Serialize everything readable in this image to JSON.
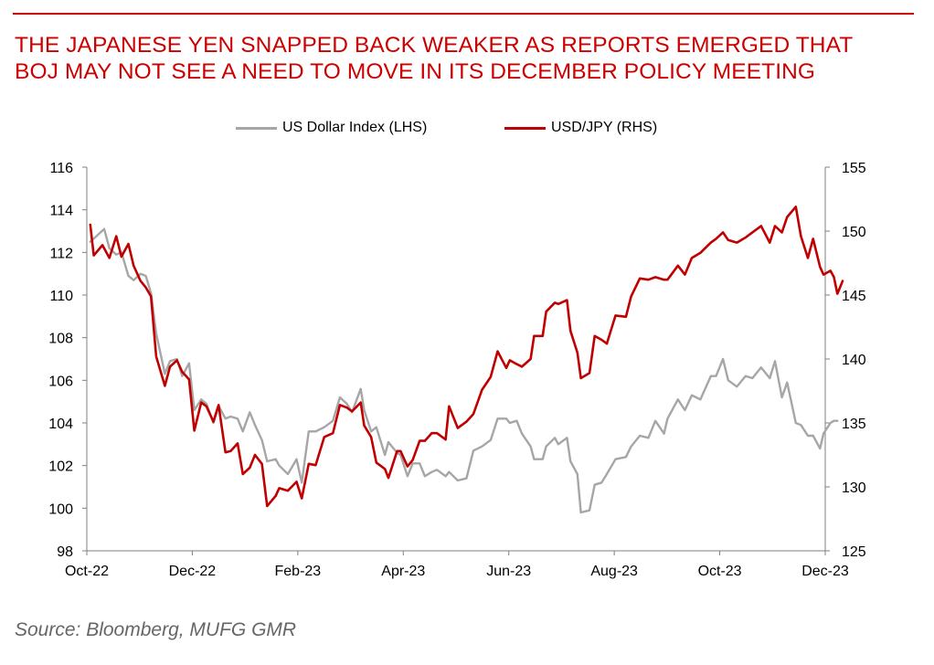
{
  "title_lines": [
    "THE JAPANESE YEN SNAPPED BACK WEAKER AS REPORTS EMERGED THAT",
    "BOJ MAY NOT SEE A NEED TO MOVE IN ITS DECEMBER POLICY MEETING"
  ],
  "source": "Source: Bloomberg, MUFG GMR",
  "colors": {
    "accent": "#cc0000",
    "dxy": "#a6a6a6",
    "usdjpy": "#c00000",
    "axis": "#808080"
  },
  "chart_data": {
    "type": "line",
    "title": "THE JAPANESE YEN SNAPPED BACK WEAKER AS REPORTS EMERGED THAT BOJ MAY NOT SEE A NEED TO MOVE IN ITS DECEMBER POLICY MEETING",
    "x_tick_labels": [
      "Oct-22",
      "Dec-22",
      "Feb-23",
      "Apr-23",
      "Jun-23",
      "Aug-23",
      "Oct-23",
      "Dec-23"
    ],
    "x_range": [
      "2022-10-01",
      "2023-12-01"
    ],
    "y_left_range": [
      98,
      116
    ],
    "y_left_ticks": [
      98,
      100,
      102,
      104,
      106,
      108,
      110,
      112,
      114,
      116
    ],
    "y_right_range": [
      125,
      155
    ],
    "y_right_ticks": [
      125,
      130,
      135,
      140,
      145,
      150,
      155
    ],
    "grid": false,
    "legend_position": "top-center",
    "series": [
      {
        "name": "US Dollar Index (LHS)",
        "axis": "left",
        "color": "#a6a6a6",
        "points": [
          [
            "2022-10-03",
            112.5
          ],
          [
            "2022-10-07",
            112.8
          ],
          [
            "2022-10-11",
            113.1
          ],
          [
            "2022-10-14",
            112.2
          ],
          [
            "2022-10-18",
            111.9
          ],
          [
            "2022-10-21",
            112.0
          ],
          [
            "2022-10-25",
            110.9
          ],
          [
            "2022-10-28",
            110.7
          ],
          [
            "2022-11-01",
            111.0
          ],
          [
            "2022-11-04",
            110.9
          ],
          [
            "2022-11-07",
            110.1
          ],
          [
            "2022-11-10",
            108.2
          ],
          [
            "2022-11-15",
            106.3
          ],
          [
            "2022-11-18",
            106.9
          ],
          [
            "2022-11-22",
            107.0
          ],
          [
            "2022-11-25",
            106.2
          ],
          [
            "2022-11-29",
            106.8
          ],
          [
            "2022-12-02",
            104.6
          ],
          [
            "2022-12-06",
            105.1
          ],
          [
            "2022-12-09",
            104.9
          ],
          [
            "2022-12-13",
            104.0
          ],
          [
            "2022-12-16",
            104.8
          ],
          [
            "2022-12-20",
            104.2
          ],
          [
            "2022-12-23",
            104.3
          ],
          [
            "2022-12-27",
            104.2
          ],
          [
            "2022-12-30",
            103.6
          ],
          [
            "2023-01-03",
            104.5
          ],
          [
            "2023-01-06",
            103.9
          ],
          [
            "2023-01-10",
            103.2
          ],
          [
            "2023-01-13",
            102.2
          ],
          [
            "2023-01-18",
            102.3
          ],
          [
            "2023-01-20",
            102.0
          ],
          [
            "2023-01-25",
            101.6
          ],
          [
            "2023-01-30",
            102.3
          ],
          [
            "2023-02-02",
            101.2
          ],
          [
            "2023-02-06",
            103.6
          ],
          [
            "2023-02-10",
            103.6
          ],
          [
            "2023-02-15",
            103.8
          ],
          [
            "2023-02-20",
            104.1
          ],
          [
            "2023-02-24",
            105.2
          ],
          [
            "2023-02-28",
            104.9
          ],
          [
            "2023-03-03",
            104.5
          ],
          [
            "2023-03-08",
            105.6
          ],
          [
            "2023-03-10",
            104.6
          ],
          [
            "2023-03-14",
            103.6
          ],
          [
            "2023-03-17",
            103.8
          ],
          [
            "2023-03-22",
            102.5
          ],
          [
            "2023-03-24",
            103.1
          ],
          [
            "2023-03-29",
            102.6
          ],
          [
            "2023-03-31",
            102.5
          ],
          [
            "2023-04-04",
            101.5
          ],
          [
            "2023-04-07",
            102.1
          ],
          [
            "2023-04-11",
            102.1
          ],
          [
            "2023-04-14",
            101.5
          ],
          [
            "2023-04-18",
            101.7
          ],
          [
            "2023-04-21",
            101.8
          ],
          [
            "2023-04-26",
            101.5
          ],
          [
            "2023-04-28",
            101.7
          ],
          [
            "2023-05-03",
            101.3
          ],
          [
            "2023-05-08",
            101.4
          ],
          [
            "2023-05-12",
            102.7
          ],
          [
            "2023-05-17",
            102.9
          ],
          [
            "2023-05-22",
            103.2
          ],
          [
            "2023-05-26",
            104.2
          ],
          [
            "2023-05-31",
            104.2
          ],
          [
            "2023-06-02",
            104.0
          ],
          [
            "2023-06-06",
            104.1
          ],
          [
            "2023-06-09",
            103.5
          ],
          [
            "2023-06-14",
            102.9
          ],
          [
            "2023-06-16",
            102.3
          ],
          [
            "2023-06-21",
            102.3
          ],
          [
            "2023-06-23",
            102.9
          ],
          [
            "2023-06-28",
            103.3
          ],
          [
            "2023-06-30",
            103.0
          ],
          [
            "2023-07-05",
            103.3
          ],
          [
            "2023-07-07",
            102.2
          ],
          [
            "2023-07-11",
            101.6
          ],
          [
            "2023-07-13",
            99.8
          ],
          [
            "2023-07-18",
            99.9
          ],
          [
            "2023-07-21",
            101.1
          ],
          [
            "2023-07-25",
            101.2
          ],
          [
            "2023-07-28",
            101.6
          ],
          [
            "2023-08-02",
            102.3
          ],
          [
            "2023-08-08",
            102.4
          ],
          [
            "2023-08-11",
            102.9
          ],
          [
            "2023-08-16",
            103.4
          ],
          [
            "2023-08-21",
            103.3
          ],
          [
            "2023-08-25",
            104.1
          ],
          [
            "2023-08-30",
            103.5
          ],
          [
            "2023-09-01",
            104.2
          ],
          [
            "2023-09-07",
            105.1
          ],
          [
            "2023-09-11",
            104.6
          ],
          [
            "2023-09-15",
            105.3
          ],
          [
            "2023-09-20",
            105.1
          ],
          [
            "2023-09-26",
            106.2
          ],
          [
            "2023-09-29",
            106.2
          ],
          [
            "2023-10-03",
            107.0
          ],
          [
            "2023-10-06",
            106.0
          ],
          [
            "2023-10-11",
            105.7
          ],
          [
            "2023-10-16",
            106.2
          ],
          [
            "2023-10-20",
            106.1
          ],
          [
            "2023-10-25",
            106.6
          ],
          [
            "2023-10-30",
            106.1
          ],
          [
            "2023-11-02",
            106.9
          ],
          [
            "2023-11-06",
            105.2
          ],
          [
            "2023-11-09",
            105.9
          ],
          [
            "2023-11-14",
            104.0
          ],
          [
            "2023-11-17",
            103.9
          ],
          [
            "2023-11-21",
            103.4
          ],
          [
            "2023-11-24",
            103.4
          ],
          [
            "2023-11-28",
            102.8
          ],
          [
            "2023-11-30",
            103.5
          ],
          [
            "2023-12-04",
            104.0
          ],
          [
            "2023-12-06",
            104.1
          ],
          [
            "2023-12-08",
            104.1
          ]
        ]
      },
      {
        "name": "USD/JPY (RHS)",
        "axis": "right",
        "color": "#c00000",
        "points": [
          [
            "2022-10-03",
            150.5
          ],
          [
            "2022-10-05",
            148.1
          ],
          [
            "2022-10-10",
            148.9
          ],
          [
            "2022-10-14",
            147.9
          ],
          [
            "2022-10-18",
            149.6
          ],
          [
            "2022-10-21",
            148.0
          ],
          [
            "2022-10-25",
            149.0
          ],
          [
            "2022-10-28",
            147.3
          ],
          [
            "2022-11-01",
            146.1
          ],
          [
            "2022-11-04",
            145.6
          ],
          [
            "2022-11-07",
            144.9
          ],
          [
            "2022-11-10",
            140.2
          ],
          [
            "2022-11-15",
            137.9
          ],
          [
            "2022-11-18",
            139.4
          ],
          [
            "2022-11-22",
            139.9
          ],
          [
            "2022-11-25",
            139.0
          ],
          [
            "2022-11-29",
            138.4
          ],
          [
            "2022-12-02",
            134.4
          ],
          [
            "2022-12-06",
            136.6
          ],
          [
            "2022-12-09",
            136.3
          ],
          [
            "2022-12-13",
            135.1
          ],
          [
            "2022-12-16",
            136.4
          ],
          [
            "2022-12-20",
            132.7
          ],
          [
            "2022-12-23",
            132.8
          ],
          [
            "2022-12-27",
            133.4
          ],
          [
            "2022-12-30",
            131.0
          ],
          [
            "2023-01-03",
            131.5
          ],
          [
            "2023-01-06",
            132.5
          ],
          [
            "2023-01-10",
            131.8
          ],
          [
            "2023-01-13",
            128.5
          ],
          [
            "2023-01-18",
            129.3
          ],
          [
            "2023-01-20",
            129.9
          ],
          [
            "2023-01-25",
            129.7
          ],
          [
            "2023-01-30",
            130.4
          ],
          [
            "2023-02-02",
            129.1
          ],
          [
            "2023-02-06",
            131.8
          ],
          [
            "2023-02-10",
            131.7
          ],
          [
            "2023-02-15",
            133.9
          ],
          [
            "2023-02-20",
            134.2
          ],
          [
            "2023-02-24",
            136.4
          ],
          [
            "2023-02-28",
            136.2
          ],
          [
            "2023-03-03",
            135.9
          ],
          [
            "2023-03-08",
            136.6
          ],
          [
            "2023-03-10",
            134.8
          ],
          [
            "2023-03-14",
            133.9
          ],
          [
            "2023-03-17",
            131.9
          ],
          [
            "2023-03-22",
            131.4
          ],
          [
            "2023-03-24",
            130.7
          ],
          [
            "2023-03-29",
            132.8
          ],
          [
            "2023-03-31",
            132.8
          ],
          [
            "2023-04-04",
            131.6
          ],
          [
            "2023-04-07",
            132.1
          ],
          [
            "2023-04-11",
            133.6
          ],
          [
            "2023-04-14",
            133.6
          ],
          [
            "2023-04-18",
            134.2
          ],
          [
            "2023-04-21",
            134.2
          ],
          [
            "2023-04-26",
            133.7
          ],
          [
            "2023-04-28",
            136.3
          ],
          [
            "2023-05-03",
            134.6
          ],
          [
            "2023-05-08",
            135.1
          ],
          [
            "2023-05-12",
            135.7
          ],
          [
            "2023-05-17",
            137.6
          ],
          [
            "2023-05-22",
            138.6
          ],
          [
            "2023-05-26",
            140.6
          ],
          [
            "2023-05-31",
            139.3
          ],
          [
            "2023-06-02",
            139.9
          ],
          [
            "2023-06-06",
            139.6
          ],
          [
            "2023-06-09",
            139.4
          ],
          [
            "2023-06-14",
            140.0
          ],
          [
            "2023-06-16",
            141.8
          ],
          [
            "2023-06-21",
            141.8
          ],
          [
            "2023-06-23",
            143.7
          ],
          [
            "2023-06-28",
            144.4
          ],
          [
            "2023-06-30",
            144.3
          ],
          [
            "2023-07-05",
            144.6
          ],
          [
            "2023-07-07",
            142.2
          ],
          [
            "2023-07-11",
            140.5
          ],
          [
            "2023-07-13",
            138.5
          ],
          [
            "2023-07-18",
            138.9
          ],
          [
            "2023-07-21",
            141.8
          ],
          [
            "2023-07-25",
            141.5
          ],
          [
            "2023-07-28",
            141.2
          ],
          [
            "2023-08-02",
            143.4
          ],
          [
            "2023-08-08",
            143.3
          ],
          [
            "2023-08-11",
            144.9
          ],
          [
            "2023-08-16",
            146.3
          ],
          [
            "2023-08-21",
            146.2
          ],
          [
            "2023-08-25",
            146.4
          ],
          [
            "2023-08-30",
            146.2
          ],
          [
            "2023-09-01",
            146.2
          ],
          [
            "2023-09-07",
            147.3
          ],
          [
            "2023-09-11",
            146.6
          ],
          [
            "2023-09-15",
            147.9
          ],
          [
            "2023-09-20",
            148.3
          ],
          [
            "2023-09-26",
            149.1
          ],
          [
            "2023-09-29",
            149.4
          ],
          [
            "2023-10-03",
            149.9
          ],
          [
            "2023-10-06",
            149.3
          ],
          [
            "2023-10-11",
            149.1
          ],
          [
            "2023-10-16",
            149.5
          ],
          [
            "2023-10-20",
            149.9
          ],
          [
            "2023-10-25",
            150.4
          ],
          [
            "2023-10-30",
            149.1
          ],
          [
            "2023-11-02",
            150.4
          ],
          [
            "2023-11-06",
            149.9
          ],
          [
            "2023-11-09",
            151.1
          ],
          [
            "2023-11-14",
            151.9
          ],
          [
            "2023-11-17",
            149.6
          ],
          [
            "2023-11-21",
            147.9
          ],
          [
            "2023-11-24",
            149.4
          ],
          [
            "2023-11-28",
            147.2
          ],
          [
            "2023-11-30",
            146.6
          ],
          [
            "2023-12-04",
            146.9
          ],
          [
            "2023-12-06",
            146.4
          ],
          [
            "2023-12-08",
            145.1
          ],
          [
            "2023-12-11",
            146.1
          ]
        ]
      }
    ]
  }
}
